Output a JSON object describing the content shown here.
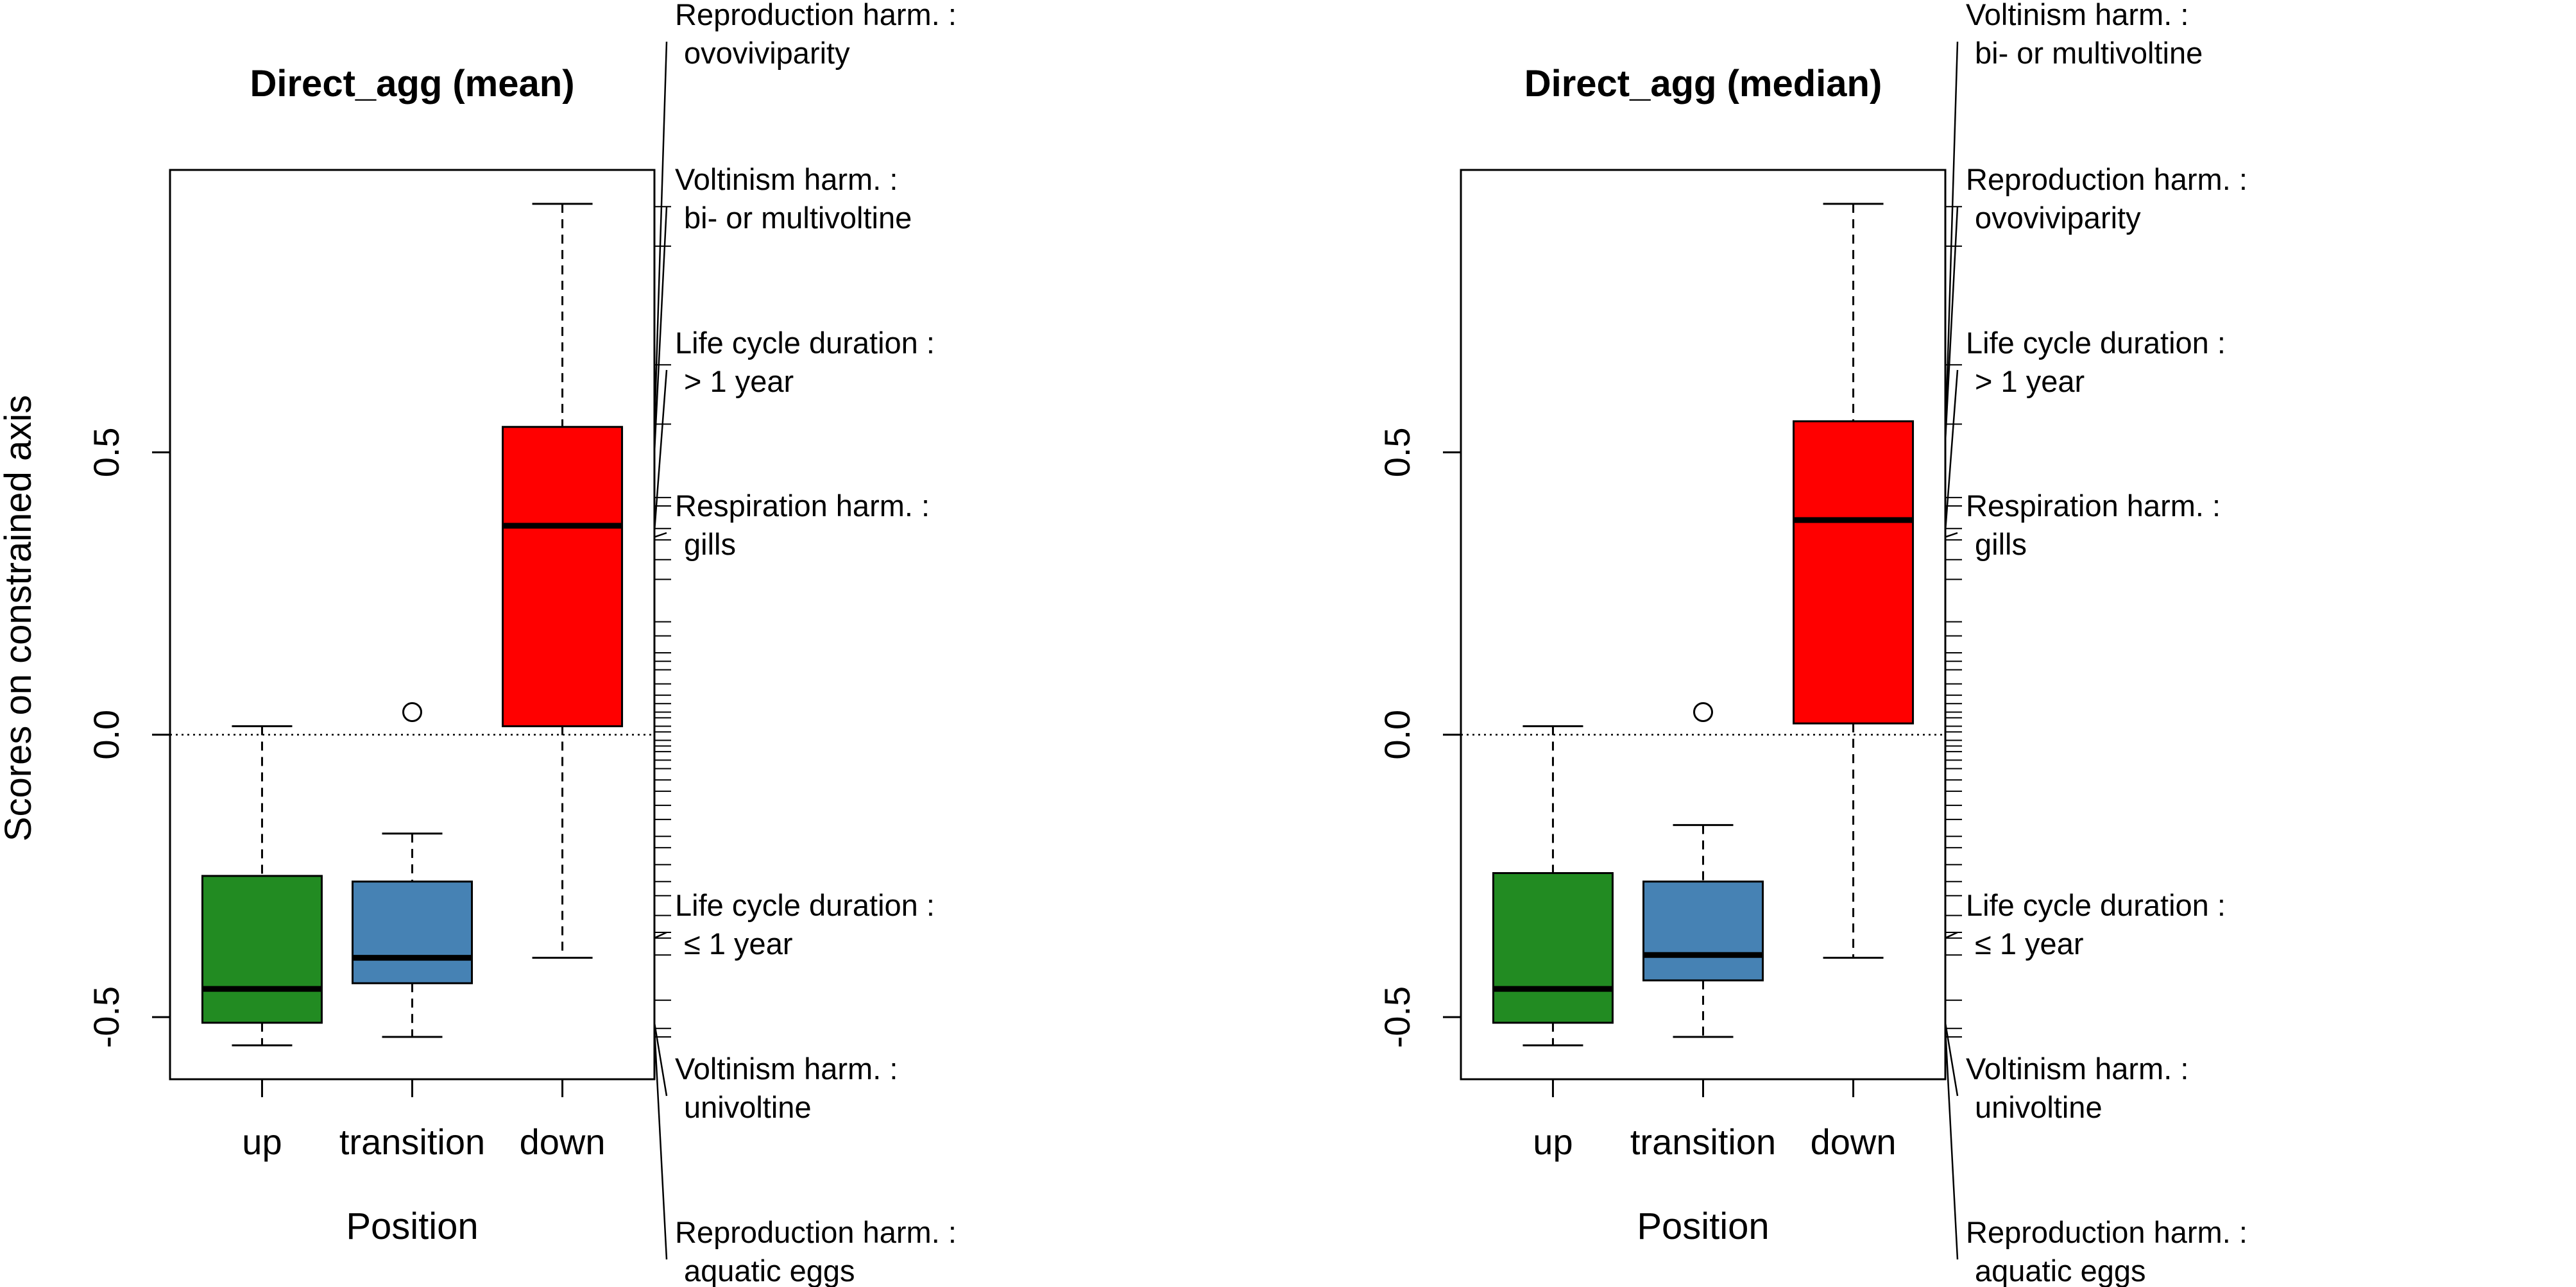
{
  "chart_data": [
    {
      "type": "box",
      "title": "Direct_agg (mean)",
      "xlabel": "Position",
      "ylabel": "Scores on constrained axis",
      "ylim": [
        -0.61,
        1.0
      ],
      "yticks": [
        -0.5,
        0.0,
        0.5
      ],
      "ytick_labels": [
        "-0.5",
        "0.0",
        "0.5"
      ],
      "reference_line": 0.0,
      "categories": [
        "up",
        "transition",
        "down"
      ],
      "boxes": [
        {
          "category": "up",
          "color": "#228B22",
          "min": -0.55,
          "q1": -0.51,
          "median": -0.45,
          "q3": -0.25,
          "max": 0.015,
          "outliers": []
        },
        {
          "category": "transition",
          "color": "#4682B4",
          "min": -0.535,
          "q1": -0.44,
          "median": -0.395,
          "q3": -0.26,
          "max": -0.175,
          "outliers": [
            0.04
          ]
        },
        {
          "category": "down",
          "color": "#FF0000",
          "min": -0.395,
          "q1": 0.015,
          "median": 0.37,
          "q3": 0.545,
          "max": 0.94,
          "outliers": []
        }
      ],
      "rug": [
        0.935,
        0.865,
        0.655,
        0.55,
        0.42,
        0.405,
        0.365,
        0.345,
        0.31,
        0.275,
        0.2,
        0.175,
        0.145,
        0.13,
        0.115,
        0.09,
        0.07,
        0.055,
        0.04,
        0.03,
        0.015,
        0.005,
        -0.01,
        -0.02,
        -0.03,
        -0.045,
        -0.06,
        -0.08,
        -0.1,
        -0.125,
        -0.15,
        -0.18,
        -0.2,
        -0.23,
        -0.26,
        -0.285,
        -0.32,
        -0.35,
        -0.36,
        -0.39,
        -0.47,
        -0.52,
        -0.535
      ],
      "modalities": [
        {
          "label": "Reproduction harm. :",
          "sub": "ovoviviparity",
          "score": 0.54
        },
        {
          "label": "Voltinism harm. :",
          "sub": "bi- or multivoltine",
          "score": 0.5
        },
        {
          "label": "Life cycle duration :",
          "sub": "> 1 year",
          "score": 0.36
        },
        {
          "label": "Respiration harm. :",
          "sub": "gills",
          "score": 0.35
        },
        {
          "label": "Life cycle duration :",
          "sub": "≤ 1 year",
          "score": -0.36
        },
        {
          "label": "Voltinism harm. :",
          "sub": "univoltine",
          "score": -0.51
        },
        {
          "label": "Reproduction harm. :",
          "sub": "aquatic eggs",
          "score": -0.52
        }
      ]
    },
    {
      "type": "box",
      "title": "Direct_agg (median)",
      "xlabel": "Position",
      "ylabel": "",
      "ylim": [
        -0.61,
        1.0
      ],
      "yticks": [
        -0.5,
        0.0,
        0.5
      ],
      "ytick_labels": [
        "-0.5",
        "0.0",
        "0.5"
      ],
      "reference_line": 0.0,
      "categories": [
        "up",
        "transition",
        "down"
      ],
      "boxes": [
        {
          "category": "up",
          "color": "#228B22",
          "min": -0.55,
          "q1": -0.51,
          "median": -0.45,
          "q3": -0.245,
          "max": 0.015,
          "outliers": []
        },
        {
          "category": "transition",
          "color": "#4682B4",
          "min": -0.535,
          "q1": -0.435,
          "median": -0.39,
          "q3": -0.26,
          "max": -0.16,
          "outliers": [
            0.04
          ]
        },
        {
          "category": "down",
          "color": "#FF0000",
          "min": -0.395,
          "q1": 0.02,
          "median": 0.38,
          "q3": 0.555,
          "max": 0.94,
          "outliers": []
        }
      ],
      "rug": [
        0.935,
        0.865,
        0.655,
        0.55,
        0.42,
        0.405,
        0.365,
        0.345,
        0.31,
        0.275,
        0.2,
        0.175,
        0.145,
        0.13,
        0.115,
        0.09,
        0.07,
        0.055,
        0.04,
        0.03,
        0.015,
        0.005,
        -0.01,
        -0.02,
        -0.03,
        -0.045,
        -0.06,
        -0.08,
        -0.1,
        -0.125,
        -0.15,
        -0.18,
        -0.2,
        -0.23,
        -0.26,
        -0.285,
        -0.32,
        -0.35,
        -0.36,
        -0.39,
        -0.47,
        -0.52,
        -0.535
      ],
      "modalities": [
        {
          "label": "Voltinism harm. :",
          "sub": "bi- or multivoltine",
          "score": 0.52
        },
        {
          "label": "Reproduction harm. :",
          "sub": "ovoviviparity",
          "score": 0.52
        },
        {
          "label": "Life cycle duration :",
          "sub": "> 1 year",
          "score": 0.36
        },
        {
          "label": "Respiration harm. :",
          "sub": "gills",
          "score": 0.35
        },
        {
          "label": "Life cycle duration :",
          "sub": "≤ 1 year",
          "score": -0.36
        },
        {
          "label": "Voltinism harm. :",
          "sub": "univoltine",
          "score": -0.51
        },
        {
          "label": "Reproduction harm. :",
          "sub": "aquatic eggs",
          "score": -0.52
        }
      ]
    }
  ]
}
